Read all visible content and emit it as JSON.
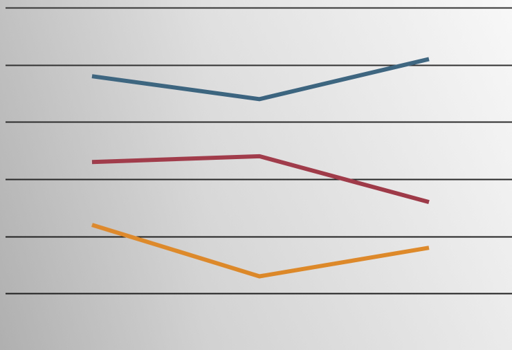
{
  "chart_data": {
    "type": "line",
    "title": "",
    "xlabel": "",
    "ylabel": "",
    "categories": [
      "",
      "",
      ""
    ],
    "ylim": [
      0,
      6
    ],
    "y_gridlines": [
      1,
      2,
      3,
      4,
      5,
      6
    ],
    "grid": true,
    "legend": "none",
    "series": [
      {
        "color": "#2a5775",
        "values": [
          4.8,
          4.4,
          5.1
        ]
      },
      {
        "color": "#9e3040",
        "values": [
          3.3,
          3.4,
          2.6
        ]
      },
      {
        "color": "#e58a24",
        "values": [
          2.2,
          1.3,
          1.8
        ]
      }
    ]
  }
}
